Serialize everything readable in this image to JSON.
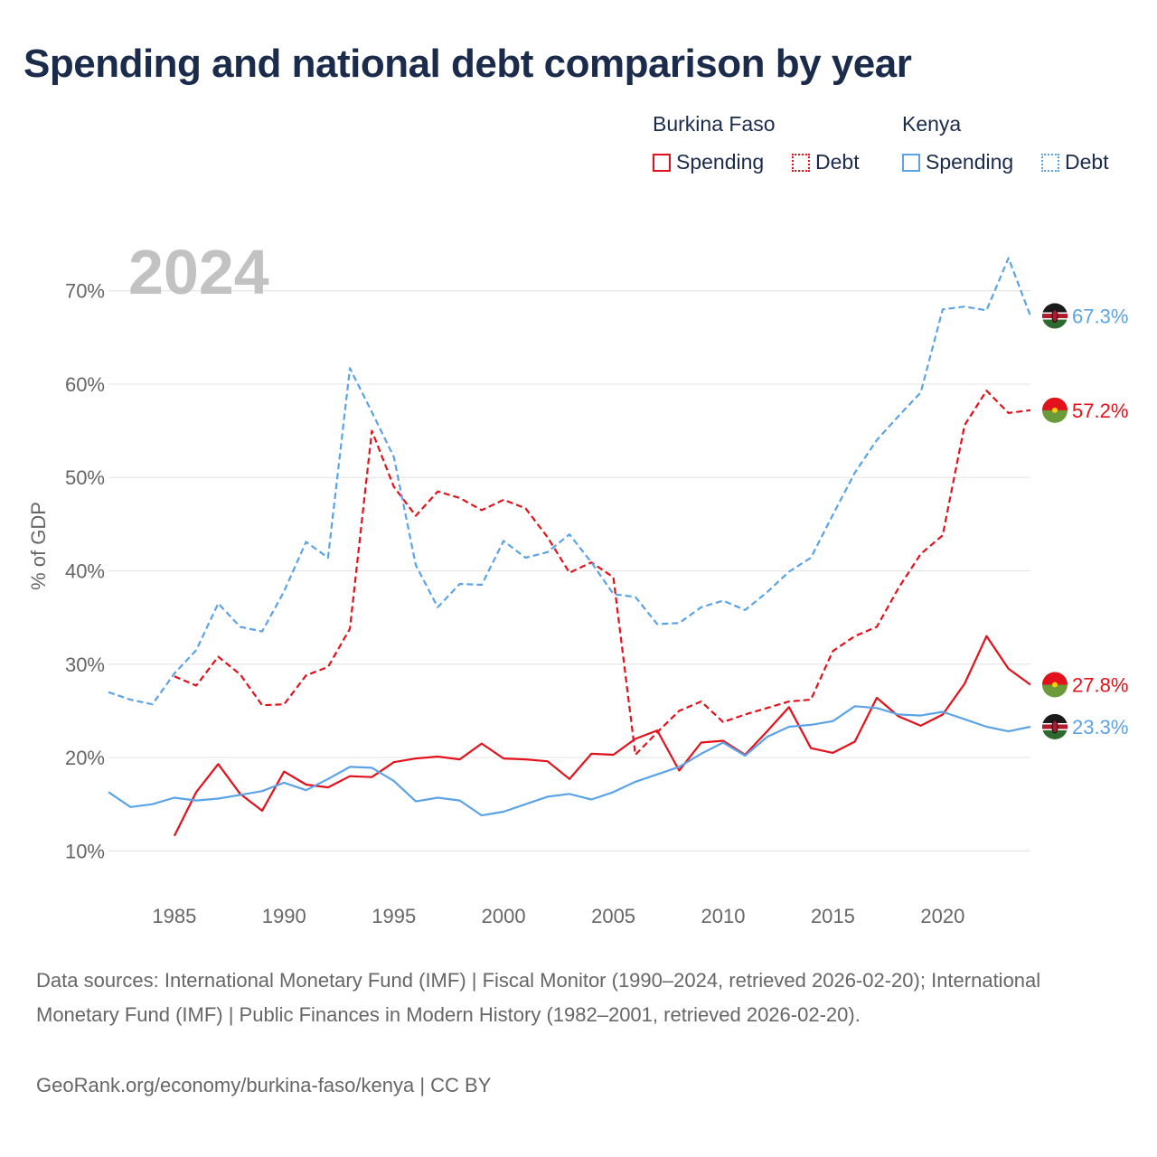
{
  "title": "Spending and national debt comparison by year",
  "legend": {
    "groups": [
      {
        "name": "Burkina Faso",
        "spending_label": "Spending",
        "debt_label": "Debt",
        "color": "#e3111b"
      },
      {
        "name": "Kenya",
        "spending_label": "Spending",
        "debt_label": "Debt",
        "color": "#5ba3e6"
      }
    ]
  },
  "year_watermark": "2024",
  "footer": {
    "sources": "Data sources: International Monetary Fund (IMF) | Fiscal Monitor (1990–2024, retrieved 2026-02-20); International Monetary Fund (IMF) | Public Finances in Modern History (1982–2001, retrieved 2026-02-20).",
    "credit": "GeoRank.org/economy/burkina-faso/kenya | CC BY"
  },
  "colors": {
    "burkina": "#e3111b",
    "kenya": "#5ba3e6",
    "grid": "#e6e6e6",
    "axis_text": "#666666"
  },
  "chart_data": {
    "type": "line",
    "title": "Spending and national debt comparison by year",
    "xlabel": "",
    "ylabel": "% of GDP",
    "xlim": [
      1982,
      2024
    ],
    "ylim": [
      8,
      75
    ],
    "xticks": [
      1985,
      1990,
      1995,
      2000,
      2005,
      2010,
      2015,
      2020
    ],
    "yticks": [
      10,
      20,
      30,
      40,
      50,
      60,
      70
    ],
    "ytick_labels": [
      "10%",
      "20%",
      "30%",
      "40%",
      "50%",
      "60%",
      "70%"
    ],
    "legend_position": "top-right",
    "series": [
      {
        "name": "Burkina Faso Spending",
        "country": "Burkina Faso",
        "metric": "Spending",
        "style": "solid",
        "color": "#e3111b",
        "end_label": "27.8%",
        "x": [
          1985,
          1986,
          1987,
          1988,
          1989,
          1990,
          1991,
          1992,
          1993,
          1994,
          1995,
          1996,
          1997,
          1998,
          1999,
          2000,
          2001,
          2002,
          2003,
          2004,
          2005,
          2006,
          2007,
          2008,
          2009,
          2010,
          2011,
          2012,
          2013,
          2014,
          2015,
          2016,
          2017,
          2018,
          2019,
          2020,
          2021,
          2022,
          2023,
          2024
        ],
        "values": [
          11.6,
          16.3,
          19.3,
          16.1,
          14.3,
          18.5,
          17.1,
          16.8,
          18.0,
          17.9,
          19.5,
          19.9,
          20.1,
          19.8,
          21.5,
          19.9,
          19.8,
          19.6,
          17.7,
          20.4,
          20.3,
          22.0,
          22.9,
          18.6,
          21.6,
          21.8,
          20.3,
          22.8,
          25.4,
          21.0,
          20.5,
          21.7,
          26.4,
          24.4,
          23.4,
          24.6,
          27.9,
          33.0,
          29.5,
          27.8
        ]
      },
      {
        "name": "Burkina Faso Debt",
        "country": "Burkina Faso",
        "metric": "Debt",
        "style": "dashed",
        "color": "#e3111b",
        "end_label": "57.2%",
        "x": [
          1985,
          1986,
          1987,
          1988,
          1989,
          1990,
          1991,
          1992,
          1993,
          1994,
          1995,
          1996,
          1997,
          1998,
          1999,
          2000,
          2001,
          2002,
          2003,
          2004,
          2005,
          2006,
          2007,
          2008,
          2009,
          2010,
          2011,
          2012,
          2013,
          2014,
          2015,
          2016,
          2017,
          2018,
          2019,
          2020,
          2021,
          2022,
          2023,
          2024
        ],
        "values": [
          28.7,
          27.7,
          30.8,
          28.9,
          25.6,
          25.7,
          28.8,
          29.7,
          33.8,
          55.0,
          49.0,
          45.9,
          48.5,
          47.8,
          46.5,
          47.6,
          46.7,
          43.6,
          39.8,
          40.9,
          39.3,
          20.3,
          22.7,
          25.0,
          26.0,
          23.8,
          24.6,
          25.3,
          26.0,
          26.2,
          31.4,
          33.0,
          34.0,
          38.2,
          41.8,
          43.8,
          55.6,
          59.3,
          56.9,
          57.2
        ]
      },
      {
        "name": "Kenya Spending",
        "country": "Kenya",
        "metric": "Spending",
        "style": "solid",
        "color": "#5ba3e6",
        "end_label": "23.3%",
        "x": [
          1982,
          1983,
          1984,
          1985,
          1986,
          1987,
          1988,
          1989,
          1990,
          1991,
          1992,
          1993,
          1994,
          1995,
          1996,
          1997,
          1998,
          1999,
          2000,
          2001,
          2002,
          2003,
          2004,
          2005,
          2006,
          2007,
          2008,
          2009,
          2010,
          2011,
          2012,
          2013,
          2014,
          2015,
          2016,
          2017,
          2018,
          2019,
          2020,
          2021,
          2022,
          2023,
          2024
        ],
        "values": [
          16.3,
          14.7,
          15.0,
          15.7,
          15.4,
          15.6,
          16.0,
          16.4,
          17.3,
          16.5,
          17.7,
          19.0,
          18.9,
          17.5,
          15.3,
          15.7,
          15.4,
          13.8,
          14.2,
          15.0,
          15.8,
          16.1,
          15.5,
          16.3,
          17.4,
          18.2,
          19.0,
          20.4,
          21.6,
          20.2,
          22.2,
          23.3,
          23.5,
          23.9,
          25.5,
          25.3,
          24.6,
          24.5,
          24.9,
          24.1,
          23.3,
          22.8,
          23.3
        ]
      },
      {
        "name": "Kenya Debt",
        "country": "Kenya",
        "metric": "Debt",
        "style": "dashed",
        "color": "#5ba3e6",
        "end_label": "67.3%",
        "x": [
          1982,
          1983,
          1984,
          1985,
          1986,
          1987,
          1988,
          1989,
          1990,
          1991,
          1992,
          1993,
          1994,
          1995,
          1996,
          1997,
          1998,
          1999,
          2000,
          2001,
          2002,
          2003,
          2004,
          2005,
          2006,
          2007,
          2008,
          2009,
          2010,
          2011,
          2012,
          2013,
          2014,
          2015,
          2016,
          2017,
          2018,
          2019,
          2020,
          2021,
          2022,
          2023,
          2024
        ],
        "values": [
          27.0,
          26.2,
          25.7,
          29.0,
          31.5,
          36.5,
          34.0,
          33.5,
          37.8,
          43.1,
          41.4,
          61.7,
          57.0,
          52.2,
          40.6,
          36.1,
          38.6,
          38.5,
          43.2,
          41.4,
          42.0,
          43.9,
          40.9,
          37.5,
          37.2,
          34.3,
          34.4,
          36.1,
          36.8,
          35.8,
          37.7,
          39.9,
          41.4,
          46.0,
          50.5,
          54.0,
          56.6,
          59.1,
          68.0,
          68.3,
          67.9,
          73.5,
          67.3
        ]
      }
    ]
  }
}
